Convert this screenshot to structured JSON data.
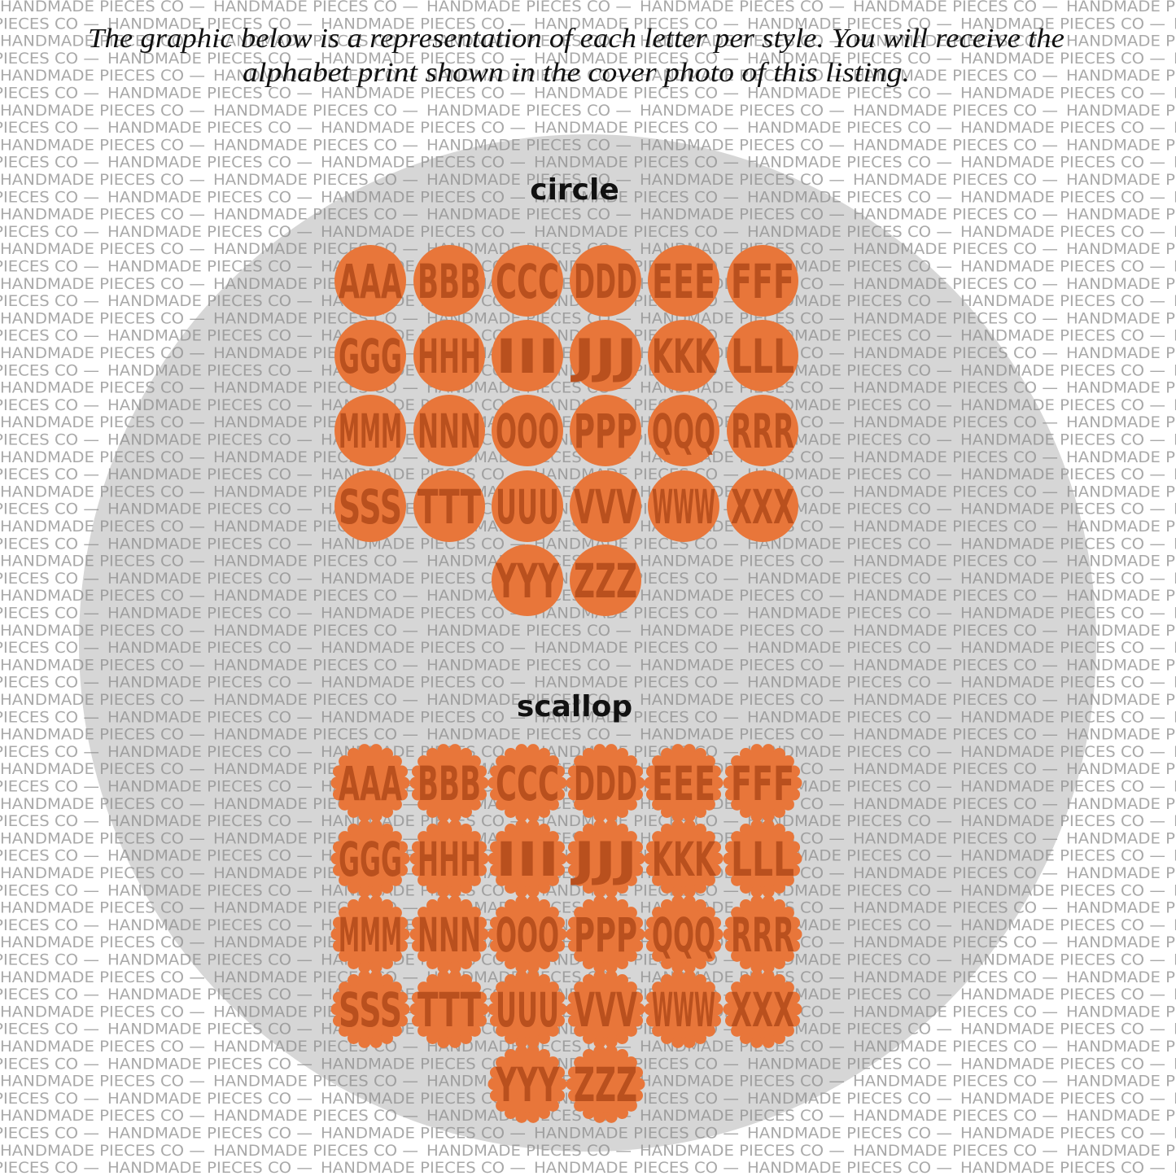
{
  "watermark": "HANDMADE PIECES CO —",
  "header": {
    "lines": [
      "The graphic below is a representation of each letter per style. You will receive the",
      "alphabet print shown in the cover photo of this listing."
    ]
  },
  "sections": [
    {
      "title": "circle",
      "style": "circle",
      "color": "#e8763a",
      "monograms": [
        "AAA",
        "BBB",
        "CCC",
        "DDD",
        "EEE",
        "FFF",
        "GGG",
        "HHH",
        "III",
        "JJJ",
        "KKK",
        "LLL",
        "MMM",
        "NNN",
        "OOO",
        "PPP",
        "QQQ",
        "RRR",
        "SSS",
        "TTT",
        "UUU",
        "VVV",
        "WWW",
        "XXX",
        "YYY",
        "ZZZ"
      ]
    },
    {
      "title": "scallop",
      "style": "scallop",
      "color": "#e8763a",
      "monograms": [
        "AAA",
        "BBB",
        "CCC",
        "DDD",
        "EEE",
        "FFF",
        "GGG",
        "HHH",
        "III",
        "JJJ",
        "KKK",
        "LLL",
        "MMM",
        "NNN",
        "OOO",
        "PPP",
        "QQQ",
        "RRR",
        "SSS",
        "TTT",
        "UUU",
        "VVV",
        "WWW",
        "XXX",
        "YYY",
        "ZZZ"
      ]
    }
  ]
}
